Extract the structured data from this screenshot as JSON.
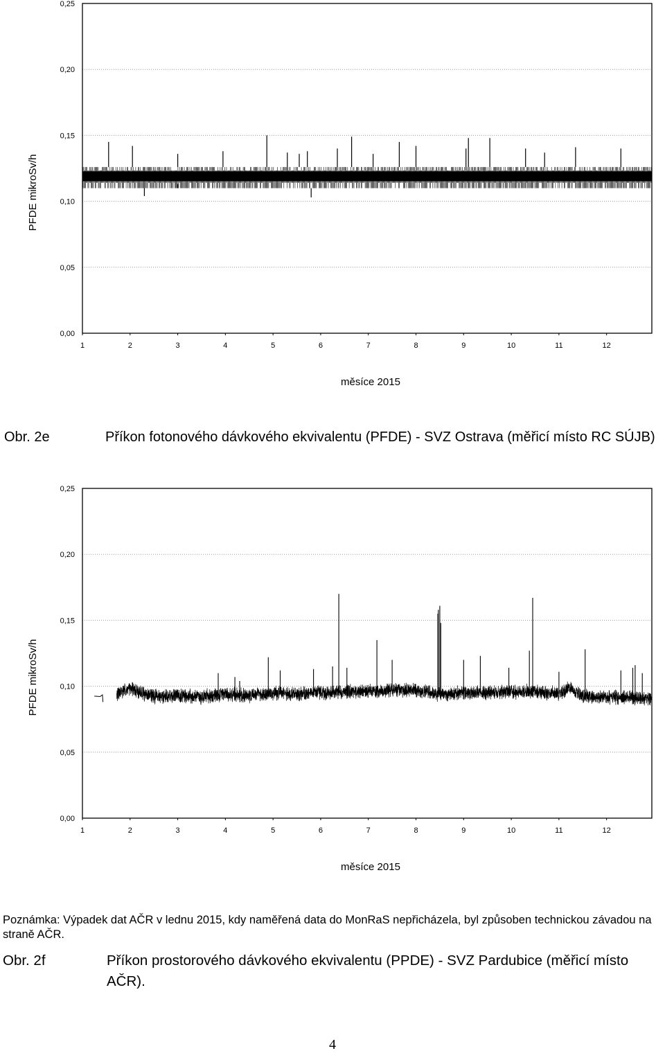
{
  "chart_data": [
    {
      "type": "line",
      "ylabel": "PFDE mikroSv/h",
      "xlabel": "měsíce 2015",
      "y_ticks": [
        "0,00",
        "0,05",
        "0,10",
        "0,15",
        "0,20",
        "0,25"
      ],
      "x_ticks": [
        "1",
        "2",
        "3",
        "4",
        "5",
        "6",
        "7",
        "8",
        "9",
        "10",
        "11",
        "12"
      ],
      "ylim": [
        0,
        0.25
      ],
      "xlim": [
        1,
        12.95
      ],
      "grid": "horizontal dotted",
      "series": [
        {
          "band_high": 0.126,
          "band_low": 0.11,
          "base": 0.118,
          "spikes": [
            [
              1.55,
              0.145
            ],
            [
              2.05,
              0.142
            ],
            [
              3.0,
              0.136
            ],
            [
              3.95,
              0.138
            ],
            [
              4.87,
              0.15
            ],
            [
              5.3,
              0.137
            ],
            [
              5.55,
              0.136
            ],
            [
              5.72,
              0.138
            ],
            [
              6.35,
              0.14
            ],
            [
              6.65,
              0.149
            ],
            [
              7.1,
              0.136
            ],
            [
              7.65,
              0.145
            ],
            [
              8.0,
              0.142
            ],
            [
              9.1,
              0.148
            ],
            [
              9.55,
              0.148
            ],
            [
              9.05,
              0.14
            ],
            [
              10.3,
              0.14
            ],
            [
              10.7,
              0.137
            ],
            [
              11.35,
              0.141
            ],
            [
              12.3,
              0.14
            ]
          ],
          "dips": [
            [
              2.3,
              0.104
            ],
            [
              5.8,
              0.103
            ],
            [
              3.0,
              0.113
            ]
          ]
        }
      ]
    },
    {
      "type": "line",
      "ylabel": "PFDE mikroSv/h",
      "xlabel": "měsíce 2015",
      "y_ticks": [
        "0,00",
        "0,05",
        "0,10",
        "0,15",
        "0,20",
        "0,25"
      ],
      "x_ticks": [
        "1",
        "2",
        "3",
        "4",
        "5",
        "6",
        "7",
        "8",
        "9",
        "10",
        "11",
        "12"
      ],
      "ylim": [
        0,
        0.25
      ],
      "xlim": [
        1,
        12.95
      ],
      "grid": "horizontal dotted",
      "series": [
        {
          "start": 1.25,
          "gap": [
            1.42,
            1.72
          ],
          "profile": [
            [
              1.25,
              0.0925
            ],
            [
              1.42,
              0.092
            ],
            [
              1.72,
              0.094
            ],
            [
              2.0,
              0.098
            ],
            [
              2.5,
              0.092
            ],
            [
              3.0,
              0.093
            ],
            [
              3.5,
              0.092
            ],
            [
              4.0,
              0.094
            ],
            [
              4.5,
              0.093
            ],
            [
              5.0,
              0.095
            ],
            [
              5.5,
              0.094
            ],
            [
              6.0,
              0.095
            ],
            [
              6.5,
              0.096
            ],
            [
              7.0,
              0.096
            ],
            [
              7.5,
              0.097
            ],
            [
              8.0,
              0.097
            ],
            [
              8.5,
              0.094
            ],
            [
              9.0,
              0.095
            ],
            [
              9.5,
              0.095
            ],
            [
              10.0,
              0.096
            ],
            [
              10.5,
              0.096
            ],
            [
              11.0,
              0.094
            ],
            [
              11.2,
              0.099
            ],
            [
              11.5,
              0.093
            ],
            [
              12.0,
              0.091
            ],
            [
              12.5,
              0.092
            ],
            [
              12.95,
              0.09
            ]
          ],
          "spikes": [
            [
              3.85,
              0.11
            ],
            [
              4.3,
              0.104
            ],
            [
              4.9,
              0.122
            ],
            [
              5.15,
              0.112
            ],
            [
              5.85,
              0.113
            ],
            [
              6.25,
              0.115
            ],
            [
              6.38,
              0.17
            ],
            [
              6.55,
              0.114
            ],
            [
              7.18,
              0.135
            ],
            [
              7.5,
              0.12
            ],
            [
              8.47,
              0.158
            ],
            [
              8.5,
              0.161
            ],
            [
              9.0,
              0.12
            ],
            [
              9.35,
              0.123
            ],
            [
              9.95,
              0.114
            ],
            [
              10.38,
              0.127
            ],
            [
              10.45,
              0.167
            ],
            [
              11.0,
              0.111
            ],
            [
              11.55,
              0.128
            ],
            [
              12.3,
              0.112
            ],
            [
              12.55,
              0.114
            ],
            [
              12.6,
              0.116
            ],
            [
              12.75,
              0.11
            ],
            [
              8.52,
              0.148
            ],
            [
              8.46,
              0.155
            ],
            [
              4.2,
              0.107
            ]
          ]
        }
      ]
    }
  ],
  "caption_2e": {
    "label": "Obr. 2e",
    "text": "Příkon fotonového dávkového ekvivalentu (PFDE) - SVZ Ostrava (měřicí místo RC SÚJB)"
  },
  "note": "Poznámka: Výpadek dat AČR v lednu 2015, kdy naměřená data do MonRaS nepřicházela, byl způsoben technickou závadou na straně AČR.",
  "caption_2f": {
    "label": "Obr. 2f",
    "text": "Příkon prostorového dávkového ekvivalentu (PPDE) - SVZ Pardubice (měřicí místo AČR)."
  },
  "page_number": "4"
}
